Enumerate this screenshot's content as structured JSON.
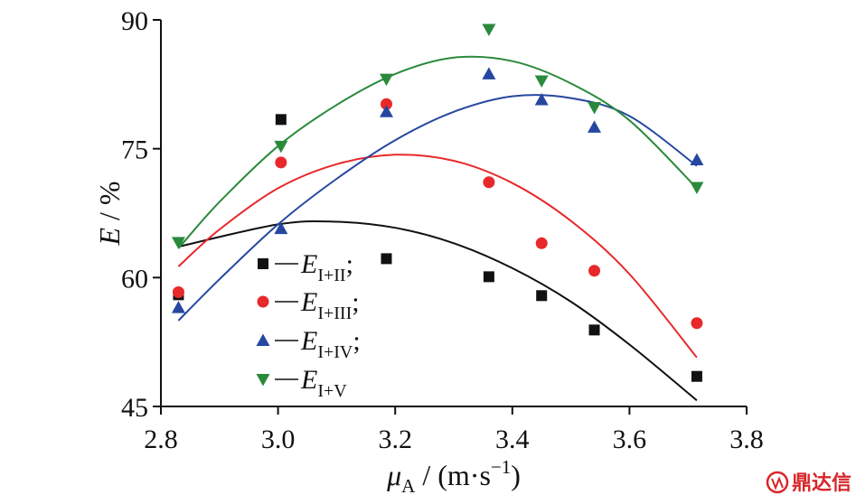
{
  "chart_data": {
    "type": "scatter",
    "title": "",
    "xlabel": {
      "var": "μ",
      "sub": "A",
      "unit_pre": " / (m·s",
      "unit_sup": "−1",
      "unit_post": ")"
    },
    "ylabel": {
      "var": "E",
      "unit": " / %"
    },
    "xlim": [
      2.8,
      3.8
    ],
    "ylim": [
      45,
      90
    ],
    "xticks": [
      "2.8",
      "3.0",
      "3.2",
      "3.4",
      "3.6",
      "3.8"
    ],
    "yticks": [
      "45",
      "60",
      "75",
      "90"
    ],
    "grid": false,
    "legend_position": "bottom-left",
    "series": [
      {
        "name": "E I+II;",
        "label_main": "E",
        "label_sub": "I+II",
        "label_tail": ";",
        "marker": "square",
        "color": "#111111",
        "x": [
          2.83,
          3.005,
          3.185,
          3.36,
          3.45,
          3.54,
          3.715
        ],
        "y": [
          58.0,
          78.4,
          62.2,
          60.1,
          57.9,
          53.9,
          48.5
        ],
        "fit": [
          [
            2.83,
            63.6
          ],
          [
            3.0,
            66.2
          ],
          [
            3.1,
            66.5
          ],
          [
            3.2,
            65.8
          ],
          [
            3.3,
            64.0
          ],
          [
            3.4,
            61.1
          ],
          [
            3.5,
            57.2
          ],
          [
            3.6,
            52.2
          ],
          [
            3.715,
            45.7
          ]
        ]
      },
      {
        "name": "E I+III;",
        "label_main": "E",
        "label_sub": "I+III",
        "label_tail": ";",
        "marker": "circle",
        "color": "#e8282b",
        "x": [
          2.83,
          3.005,
          3.185,
          3.36,
          3.45,
          3.54,
          3.715
        ],
        "y": [
          58.3,
          73.4,
          80.2,
          71.1,
          64.0,
          60.8,
          54.7
        ],
        "fit": [
          [
            2.83,
            61.3
          ],
          [
            2.9,
            65.6
          ],
          [
            3.0,
            70.4
          ],
          [
            3.1,
            73.2
          ],
          [
            3.2,
            74.3
          ],
          [
            3.3,
            73.6
          ],
          [
            3.4,
            71.0
          ],
          [
            3.5,
            66.6
          ],
          [
            3.6,
            60.4
          ],
          [
            3.715,
            50.7
          ]
        ]
      },
      {
        "name": "E I+IV;",
        "label_main": "E",
        "label_sub": "I+IV",
        "label_tail": ";",
        "marker": "triangle-up",
        "color": "#2647a0",
        "x": [
          2.83,
          3.005,
          3.185,
          3.36,
          3.45,
          3.54,
          3.715
        ],
        "y": [
          56.5,
          65.7,
          79.3,
          83.7,
          80.7,
          77.5,
          73.7
        ],
        "fit": [
          [
            2.83,
            55.0
          ],
          [
            2.9,
            59.8
          ],
          [
            3.0,
            66.2
          ],
          [
            3.1,
            71.5
          ],
          [
            3.2,
            76.0
          ],
          [
            3.3,
            79.3
          ],
          [
            3.4,
            81.1
          ],
          [
            3.5,
            80.9
          ],
          [
            3.6,
            78.8
          ],
          [
            3.715,
            73.0
          ]
        ]
      },
      {
        "name": "E I+V",
        "label_main": "E",
        "label_sub": "I+V",
        "label_tail": "",
        "marker": "triangle-down",
        "color": "#2a8a3c",
        "x": [
          2.83,
          3.005,
          3.185,
          3.36,
          3.45,
          3.54,
          3.715
        ],
        "y": [
          64.1,
          75.3,
          83.1,
          88.9,
          82.9,
          79.8,
          70.5
        ],
        "fit": [
          [
            2.83,
            63.4
          ],
          [
            2.9,
            68.8
          ],
          [
            3.0,
            75.3
          ],
          [
            3.1,
            80.1
          ],
          [
            3.2,
            83.7
          ],
          [
            3.3,
            85.6
          ],
          [
            3.4,
            85.2
          ],
          [
            3.5,
            82.6
          ],
          [
            3.6,
            78.3
          ],
          [
            3.715,
            70.4
          ]
        ]
      }
    ]
  },
  "watermark": {
    "text": "鼎达信"
  }
}
